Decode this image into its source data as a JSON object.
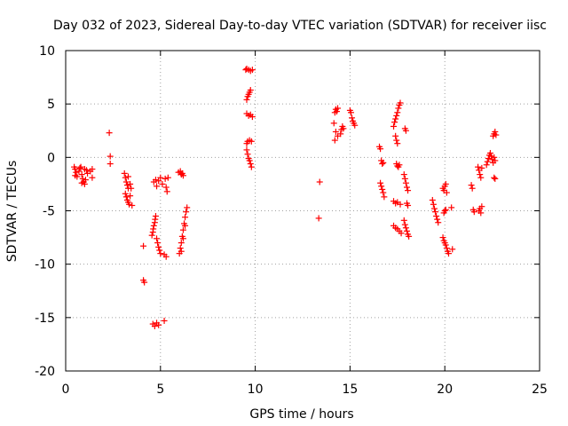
{
  "chart_data": {
    "type": "scatter",
    "title": "Day 032 of 2023, Sidereal Day-to-day VTEC variation (SDTVAR) for receiver iisc",
    "xlabel": "GPS time / hours",
    "ylabel": "SDTVAR / TECUs",
    "xlim": [
      0,
      25
    ],
    "ylim": [
      -20,
      10
    ],
    "xticks": [
      "0",
      "5",
      "10",
      "15",
      "20",
      "25"
    ],
    "yticks": [
      "-20",
      "-15",
      "-10",
      "-5",
      "0",
      "5",
      "10"
    ],
    "grid": true,
    "marker": "+",
    "color": "#ff0000",
    "series": [
      {
        "name": "SDTVAR",
        "points": [
          [
            0.45,
            -0.9
          ],
          [
            0.5,
            -1.1
          ],
          [
            0.55,
            -1.4
          ],
          [
            0.5,
            -1.7
          ],
          [
            0.6,
            -1.8
          ],
          [
            0.7,
            -1.3
          ],
          [
            0.75,
            -1.0
          ],
          [
            0.8,
            -0.9
          ],
          [
            0.85,
            -1.6
          ],
          [
            0.9,
            -2.0
          ],
          [
            0.95,
            -2.3
          ],
          [
            1.0,
            -2.5
          ],
          [
            1.05,
            -2.1
          ],
          [
            0.85,
            -2.4
          ],
          [
            1.0,
            -1.1
          ],
          [
            1.1,
            -1.2
          ],
          [
            1.15,
            -1.5
          ],
          [
            1.3,
            -1.3
          ],
          [
            1.4,
            -1.1
          ],
          [
            1.4,
            -1.9
          ],
          [
            2.3,
            2.3
          ],
          [
            2.35,
            0.1
          ],
          [
            2.35,
            -0.6
          ],
          [
            3.1,
            -1.5
          ],
          [
            3.15,
            -1.9
          ],
          [
            3.2,
            -2.3
          ],
          [
            3.25,
            -2.6
          ],
          [
            3.3,
            -2.9
          ],
          [
            3.15,
            -3.4
          ],
          [
            3.2,
            -3.7
          ],
          [
            3.25,
            -4.0
          ],
          [
            3.3,
            -4.2
          ],
          [
            3.35,
            -4.4
          ],
          [
            3.4,
            -3.6
          ],
          [
            3.45,
            -2.9
          ],
          [
            3.5,
            -4.5
          ],
          [
            3.3,
            -1.8
          ],
          [
            3.4,
            -2.5
          ],
          [
            4.1,
            -8.3
          ],
          [
            4.1,
            -11.5
          ],
          [
            4.15,
            -11.7
          ],
          [
            4.55,
            -7.3
          ],
          [
            4.6,
            -7.0
          ],
          [
            4.62,
            -6.7
          ],
          [
            4.65,
            -6.4
          ],
          [
            4.7,
            -6.1
          ],
          [
            4.72,
            -5.8
          ],
          [
            4.75,
            -5.5
          ],
          [
            4.8,
            -7.6
          ],
          [
            4.85,
            -8.0
          ],
          [
            4.9,
            -8.4
          ],
          [
            4.95,
            -8.7
          ],
          [
            5.0,
            -9.0
          ],
          [
            4.65,
            -2.3
          ],
          [
            4.75,
            -2.1
          ],
          [
            4.8,
            -2.7
          ],
          [
            4.9,
            -2.2
          ],
          [
            5.0,
            -1.9
          ],
          [
            5.1,
            -2.5
          ],
          [
            4.6,
            -15.6
          ],
          [
            4.7,
            -15.8
          ],
          [
            4.8,
            -15.5
          ],
          [
            4.9,
            -15.7
          ],
          [
            5.2,
            -15.3
          ],
          [
            5.25,
            -2.0
          ],
          [
            5.3,
            -2.8
          ],
          [
            5.35,
            -3.2
          ],
          [
            5.4,
            -1.9
          ],
          [
            5.3,
            -9.3
          ],
          [
            5.2,
            -9.1
          ],
          [
            5.95,
            -1.4
          ],
          [
            6.05,
            -1.3
          ],
          [
            6.1,
            -1.6
          ],
          [
            6.15,
            -1.5
          ],
          [
            6.2,
            -1.7
          ],
          [
            6.0,
            -9.0
          ],
          [
            6.05,
            -8.5
          ],
          [
            6.1,
            -8.0
          ],
          [
            6.15,
            -7.4
          ],
          [
            6.2,
            -6.8
          ],
          [
            6.25,
            -6.2
          ],
          [
            6.3,
            -5.6
          ],
          [
            6.35,
            -5.1
          ],
          [
            6.4,
            -4.7
          ],
          [
            6.1,
            -8.8
          ],
          [
            6.2,
            -7.6
          ],
          [
            6.3,
            -6.4
          ],
          [
            9.5,
            8.2
          ],
          [
            9.55,
            8.3
          ],
          [
            9.65,
            8.2
          ],
          [
            9.75,
            8.1
          ],
          [
            9.85,
            8.2
          ],
          [
            9.55,
            5.4
          ],
          [
            9.6,
            5.7
          ],
          [
            9.65,
            5.9
          ],
          [
            9.7,
            6.1
          ],
          [
            9.75,
            6.3
          ],
          [
            9.55,
            4.1
          ],
          [
            9.65,
            3.9
          ],
          [
            9.75,
            4.0
          ],
          [
            9.85,
            3.8
          ],
          [
            9.55,
            1.3
          ],
          [
            9.6,
            1.5
          ],
          [
            9.7,
            1.6
          ],
          [
            9.8,
            1.5
          ],
          [
            9.55,
            0.7
          ],
          [
            9.6,
            0.3
          ],
          [
            9.65,
            -0.1
          ],
          [
            9.7,
            -0.3
          ],
          [
            9.75,
            -0.6
          ],
          [
            9.8,
            -0.9
          ],
          [
            13.4,
            -2.3
          ],
          [
            13.35,
            -5.7
          ],
          [
            14.2,
            4.2
          ],
          [
            14.25,
            4.5
          ],
          [
            14.3,
            4.3
          ],
          [
            14.35,
            4.6
          ],
          [
            14.15,
            3.2
          ],
          [
            14.25,
            2.4
          ],
          [
            14.35,
            2.0
          ],
          [
            14.2,
            1.6
          ],
          [
            14.5,
            2.2
          ],
          [
            14.55,
            2.6
          ],
          [
            14.6,
            2.9
          ],
          [
            14.65,
            2.7
          ],
          [
            15.0,
            4.4
          ],
          [
            15.05,
            4.2
          ],
          [
            15.1,
            3.7
          ],
          [
            15.15,
            3.4
          ],
          [
            15.2,
            3.2
          ],
          [
            15.25,
            3.0
          ],
          [
            16.55,
            1.0
          ],
          [
            16.6,
            0.8
          ],
          [
            16.65,
            -0.3
          ],
          [
            16.7,
            -0.6
          ],
          [
            16.75,
            -0.5
          ],
          [
            16.6,
            -2.4
          ],
          [
            16.65,
            -2.7
          ],
          [
            16.7,
            -3.0
          ],
          [
            16.75,
            -3.3
          ],
          [
            16.8,
            -3.7
          ],
          [
            17.3,
            2.9
          ],
          [
            17.35,
            3.3
          ],
          [
            17.4,
            3.6
          ],
          [
            17.45,
            3.9
          ],
          [
            17.5,
            4.2
          ],
          [
            17.55,
            4.6
          ],
          [
            17.6,
            4.9
          ],
          [
            17.65,
            5.1
          ],
          [
            17.4,
            2.0
          ],
          [
            17.45,
            1.6
          ],
          [
            17.5,
            1.3
          ],
          [
            17.45,
            -0.6
          ],
          [
            17.5,
            -0.8
          ],
          [
            17.55,
            -0.9
          ],
          [
            17.6,
            -0.7
          ],
          [
            17.3,
            -4.1
          ],
          [
            17.4,
            -4.3
          ],
          [
            17.5,
            -4.2
          ],
          [
            17.65,
            -4.4
          ],
          [
            17.3,
            -6.4
          ],
          [
            17.4,
            -6.6
          ],
          [
            17.5,
            -6.7
          ],
          [
            17.6,
            -6.9
          ],
          [
            17.7,
            -7.1
          ],
          [
            17.9,
            2.7
          ],
          [
            17.95,
            2.5
          ],
          [
            17.85,
            -1.6
          ],
          [
            17.9,
            -2.0
          ],
          [
            17.95,
            -2.4
          ],
          [
            18.0,
            -2.8
          ],
          [
            18.05,
            -3.1
          ],
          [
            18.0,
            -4.3
          ],
          [
            18.05,
            -4.5
          ],
          [
            17.85,
            -5.9
          ],
          [
            17.9,
            -6.3
          ],
          [
            17.95,
            -6.6
          ],
          [
            18.0,
            -6.9
          ],
          [
            18.05,
            -7.2
          ],
          [
            18.1,
            -7.4
          ],
          [
            19.35,
            -4.0
          ],
          [
            19.4,
            -4.4
          ],
          [
            19.45,
            -4.8
          ],
          [
            19.5,
            -5.1
          ],
          [
            19.55,
            -5.5
          ],
          [
            19.6,
            -5.8
          ],
          [
            19.65,
            -6.1
          ],
          [
            19.9,
            -2.9
          ],
          [
            19.95,
            -3.1
          ],
          [
            20.0,
            -2.7
          ],
          [
            20.05,
            -2.5
          ],
          [
            20.1,
            -3.3
          ],
          [
            19.95,
            -5.2
          ],
          [
            20.0,
            -5.0
          ],
          [
            20.05,
            -4.9
          ],
          [
            19.9,
            -7.5
          ],
          [
            19.95,
            -7.8
          ],
          [
            20.0,
            -8.0
          ],
          [
            20.05,
            -8.2
          ],
          [
            20.1,
            -8.5
          ],
          [
            20.15,
            -8.8
          ],
          [
            20.2,
            -9.0
          ],
          [
            20.4,
            -8.6
          ],
          [
            20.35,
            -4.7
          ],
          [
            21.4,
            -2.6
          ],
          [
            21.45,
            -2.9
          ],
          [
            21.5,
            -4.9
          ],
          [
            21.55,
            -5.1
          ],
          [
            21.8,
            -5.0
          ],
          [
            21.85,
            -4.8
          ],
          [
            21.9,
            -5.2
          ],
          [
            21.95,
            -4.6
          ],
          [
            21.75,
            -0.9
          ],
          [
            21.8,
            -1.2
          ],
          [
            21.85,
            -1.6
          ],
          [
            21.9,
            -1.9
          ],
          [
            21.95,
            -1.0
          ],
          [
            22.2,
            -0.7
          ],
          [
            22.25,
            -0.4
          ],
          [
            22.3,
            -0.1
          ],
          [
            22.35,
            0.2
          ],
          [
            22.4,
            0.4
          ],
          [
            22.45,
            0.1
          ],
          [
            22.5,
            -0.2
          ],
          [
            22.55,
            -0.5
          ],
          [
            22.6,
            0.0
          ],
          [
            22.65,
            -0.3
          ],
          [
            22.55,
            2.0
          ],
          [
            22.6,
            2.2
          ],
          [
            22.65,
            2.4
          ],
          [
            22.7,
            2.1
          ],
          [
            22.6,
            -1.9
          ],
          [
            22.65,
            -2.0
          ]
        ]
      }
    ]
  }
}
